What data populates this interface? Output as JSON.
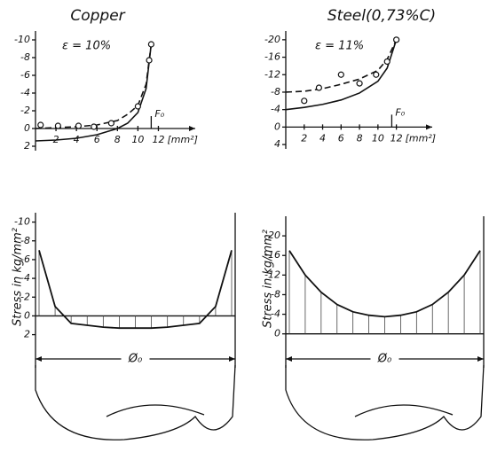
{
  "chart_data": [
    {
      "type": "line",
      "title": "Copper",
      "subtitle": "ε = 10%",
      "x_label": "[mm²]",
      "annotation": {
        "text": "F₀",
        "x": 11.3
      },
      "xlim": [
        0,
        13
      ],
      "xticks": [
        2,
        4,
        6,
        8,
        10,
        12
      ],
      "ylim": [
        2.5,
        -11
      ],
      "yticks": [
        -10,
        -8,
        -6,
        -4,
        -2,
        0,
        2
      ],
      "series": [
        {
          "style": "dashed",
          "color": "#111",
          "x": [
            0,
            2,
            4,
            6,
            8,
            9,
            10,
            10.8,
            11.3
          ],
          "values": [
            0,
            -0.1,
            -0.2,
            -0.4,
            -0.9,
            -1.6,
            -2.6,
            -5,
            -9.5
          ]
        },
        {
          "style": "solid",
          "color": "#111",
          "x": [
            0,
            2,
            4,
            6,
            8,
            9,
            10,
            10.8,
            11.3
          ],
          "values": [
            1.4,
            1.3,
            1.1,
            0.7,
            0,
            -0.6,
            -1.8,
            -4.5,
            -9.5
          ]
        },
        {
          "style": "markers",
          "color": "#111",
          "x": [
            0.5,
            2.2,
            4.2,
            5.7,
            7.4,
            10,
            11.1,
            11.3
          ],
          "values": [
            -0.4,
            -0.3,
            -0.3,
            -0.2,
            -0.6,
            -2.5,
            -7.7,
            -9.5
          ]
        }
      ]
    },
    {
      "type": "line",
      "title": "Steel(0,73%C)",
      "subtitle": "ε = 11%",
      "x_label": "[mm²]",
      "annotation": {
        "text": "F₀",
        "x": 11.5
      },
      "xlim": [
        0,
        13
      ],
      "xticks": [
        2,
        4,
        6,
        8,
        10,
        12
      ],
      "ylim": [
        5,
        -22
      ],
      "yticks": [
        -20,
        -16,
        -12,
        -8,
        -4,
        0,
        4
      ],
      "series": [
        {
          "style": "dashed",
          "color": "#111",
          "x": [
            0,
            2,
            4,
            6,
            8,
            10,
            11,
            12
          ],
          "values": [
            -8,
            -8.2,
            -8.8,
            -9.8,
            -11,
            -13,
            -15.5,
            -20
          ]
        },
        {
          "style": "solid",
          "color": "#111",
          "x": [
            0,
            2,
            4,
            6,
            8,
            10,
            11,
            12
          ],
          "values": [
            -4,
            -4.5,
            -5.2,
            -6.2,
            -7.8,
            -10.5,
            -13.5,
            -20
          ]
        },
        {
          "style": "markers",
          "color": "#111",
          "x": [
            2,
            3.6,
            6,
            8,
            9.8,
            11,
            12
          ],
          "values": [
            -6,
            -9,
            -12,
            -10,
            -12,
            -15,
            -20
          ]
        }
      ]
    },
    {
      "type": "profile",
      "y_label": "Stress in kg/mm²",
      "diameter_label": "Ø₀",
      "ylim": [
        2.7,
        -11
      ],
      "yticks": [
        2,
        0,
        -2,
        -4,
        -6,
        -8,
        -10
      ],
      "categories": [
        null,
        null,
        null,
        null,
        null,
        null,
        null,
        null,
        null,
        null,
        null,
        null,
        null
      ],
      "values": [
        -7,
        -1,
        0.8,
        1,
        1.2,
        1.3,
        1.3,
        1.3,
        1.2,
        1,
        0.8,
        -1,
        -7
      ]
    },
    {
      "type": "profile",
      "y_label": "Stress in kg/mm²",
      "diameter_label": "Ø₀",
      "ylim": [
        1.5,
        -24
      ],
      "yticks": [
        0,
        -4,
        -8,
        -12,
        -16,
        -20
      ],
      "categories": [
        null,
        null,
        null,
        null,
        null,
        null,
        null,
        null,
        null,
        null,
        null,
        null,
        null
      ],
      "values": [
        -17,
        -12,
        -8.5,
        -6,
        -4.5,
        -3.8,
        -3.5,
        -3.8,
        -4.5,
        -6,
        -8.5,
        -12,
        -17
      ]
    }
  ]
}
